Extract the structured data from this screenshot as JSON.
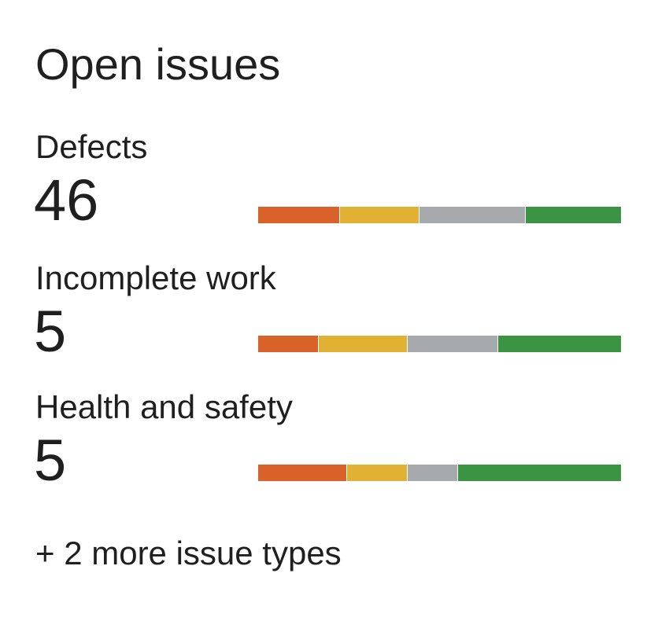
{
  "title": "Open issues",
  "severity_colors": {
    "critical": "#d9622b",
    "high": "#e0b133",
    "medium": "#a7aaad",
    "low": "#3a9444"
  },
  "issues": [
    {
      "label": "Defects",
      "count": "46",
      "breakdown_fractions": [
        0.224,
        0.219,
        0.293,
        0.264
      ]
    },
    {
      "label": "Incomplete work",
      "count": "5",
      "breakdown_fractions": [
        0.165,
        0.246,
        0.249,
        0.34
      ]
    },
    {
      "label": "Health and safety",
      "count": "5",
      "breakdown_fractions": [
        0.245,
        0.165,
        0.139,
        0.451
      ]
    }
  ],
  "more_link": "+ 2 more issue types"
}
